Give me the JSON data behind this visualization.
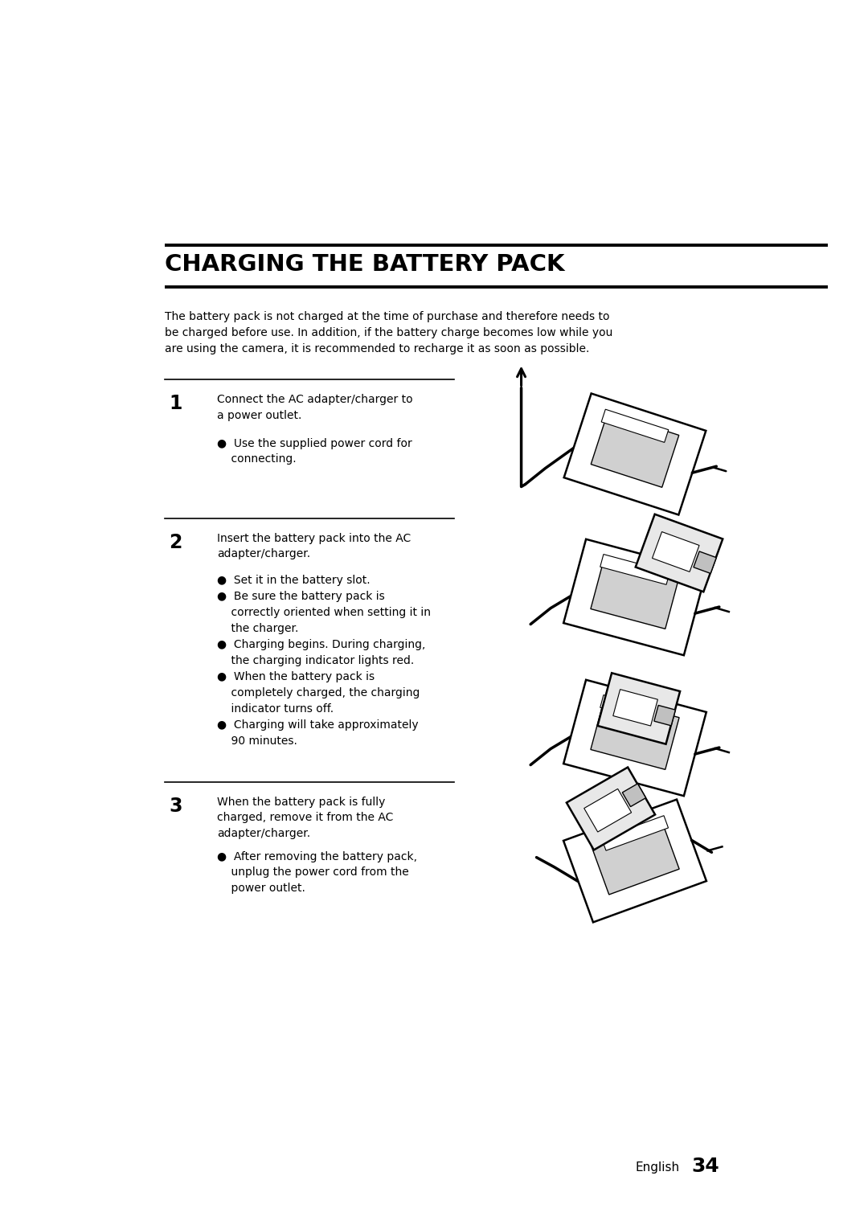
{
  "bg_color": "#ffffff",
  "title": "CHARGING THE BATTERY PACK",
  "title_fontsize": 21,
  "intro_text": "The battery pack is not charged at the time of purchase and therefore needs to\nbe charged before use. In addition, if the battery charge becomes low while you\nare using the camera, it is recommended to recharge it as soon as possible.",
  "intro_fontsize": 10.0,
  "step1_num": "1",
  "step1_num_fontsize": 17,
  "step1_main": "Connect the AC adapter/charger to\na power outlet.",
  "step1_bullet1": "●  Use the supplied power cord for\n    connecting.",
  "step2_num": "2",
  "step2_num_fontsize": 17,
  "step2_main": "Insert the battery pack into the AC\nadapter/charger.",
  "step2_bullets": "●  Set it in the battery slot.\n●  Be sure the battery pack is\n    correctly oriented when setting it in\n    the charger.\n●  Charging begins. During charging,\n    the charging indicator lights red.\n●  When the battery pack is\n    completely charged, the charging\n    indicator turns off.\n●  Charging will take approximately\n    90 minutes.",
  "step3_num": "3",
  "step3_num_fontsize": 17,
  "step3_main": "When the battery pack is fully\ncharged, remove it from the AC\nadapter/charger.",
  "step3_bullet1": "●  After removing the battery pack,\n    unplug the power cord from the\n    power outlet.",
  "footer_text": "English",
  "footer_num": "34",
  "text_color": "#000000",
  "line_color": "#000000",
  "body_fontsize": 10.0
}
